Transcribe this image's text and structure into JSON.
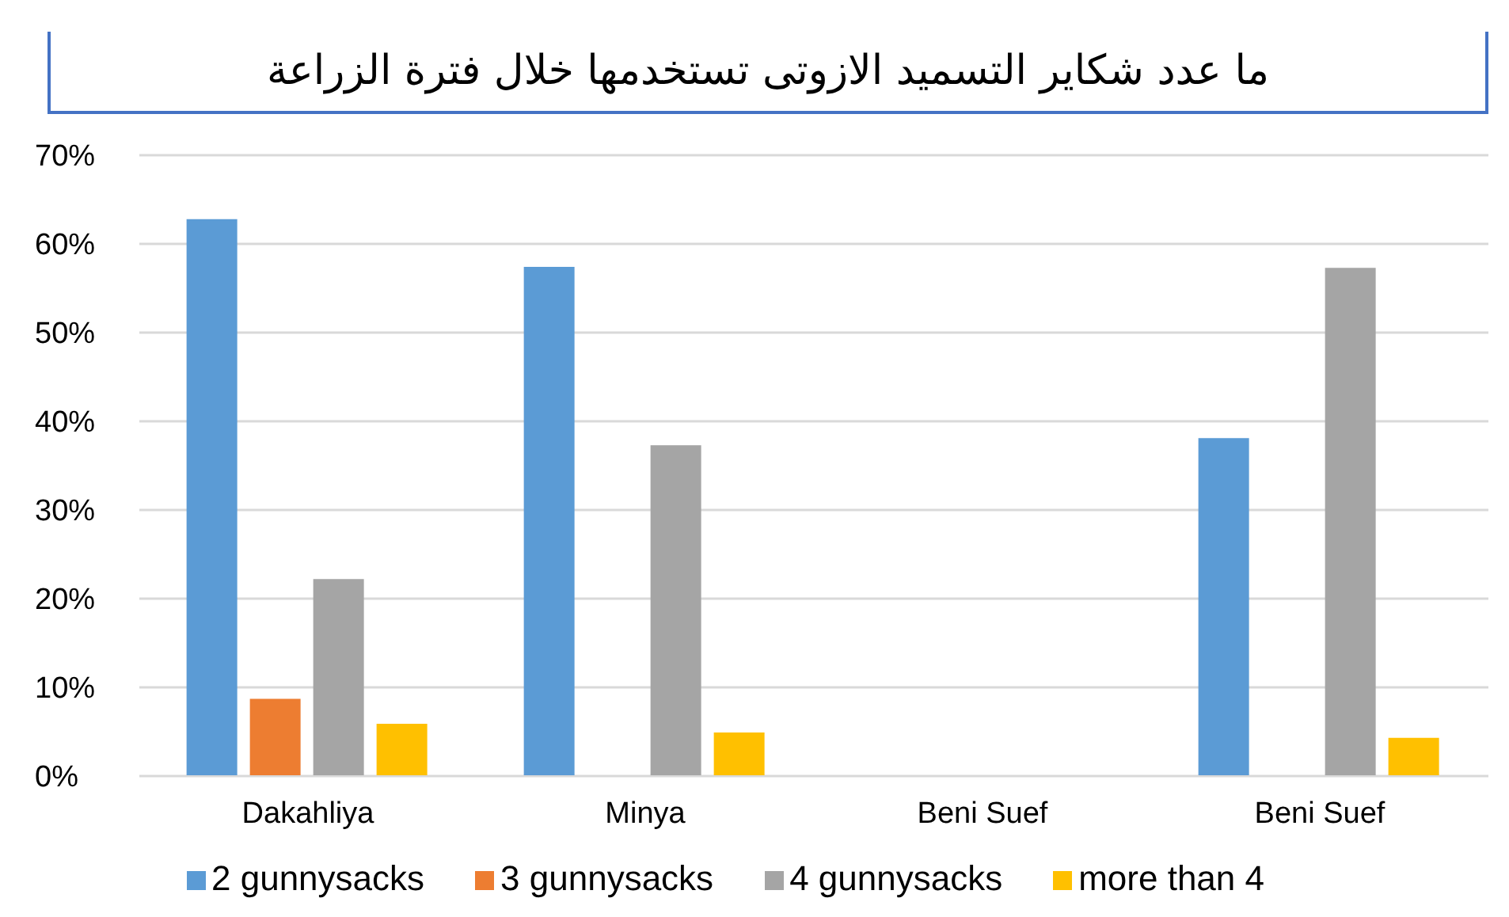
{
  "chart_data": {
    "type": "bar",
    "title": "ما عدد شكاير التسميد الازوتى تستخدمها خلال فترة الزراعة",
    "categories": [
      "Dakahliya",
      "Minya",
      "Beni Suef",
      "Beni Suef"
    ],
    "series": [
      {
        "name": "2 gunnysacks",
        "color": "#5b9bd5",
        "values": [
          62.8,
          57.4,
          0,
          38.1
        ]
      },
      {
        "name": "3 gunnysacks",
        "color": "#ed7d31",
        "values": [
          8.7,
          0,
          0,
          0
        ]
      },
      {
        "name": "4 gunnysacks",
        "color": "#a5a5a5",
        "values": [
          22.2,
          37.3,
          0,
          57.3
        ]
      },
      {
        "name": "more than 4",
        "color": "#ffc000",
        "values": [
          5.9,
          4.9,
          0,
          4.3
        ]
      }
    ],
    "ylim": [
      0,
      70
    ],
    "yticks": [
      {
        "value": 0,
        "label": "0%"
      },
      {
        "value": 10,
        "label": "10%"
      },
      {
        "value": 20,
        "label": "20%"
      },
      {
        "value": 30,
        "label": "30%"
      },
      {
        "value": 40,
        "label": "40%"
      },
      {
        "value": 50,
        "label": "50%"
      },
      {
        "value": 60,
        "label": "60%"
      },
      {
        "value": 70,
        "label": "70%"
      }
    ],
    "grid": "y",
    "legend": "bottom"
  }
}
